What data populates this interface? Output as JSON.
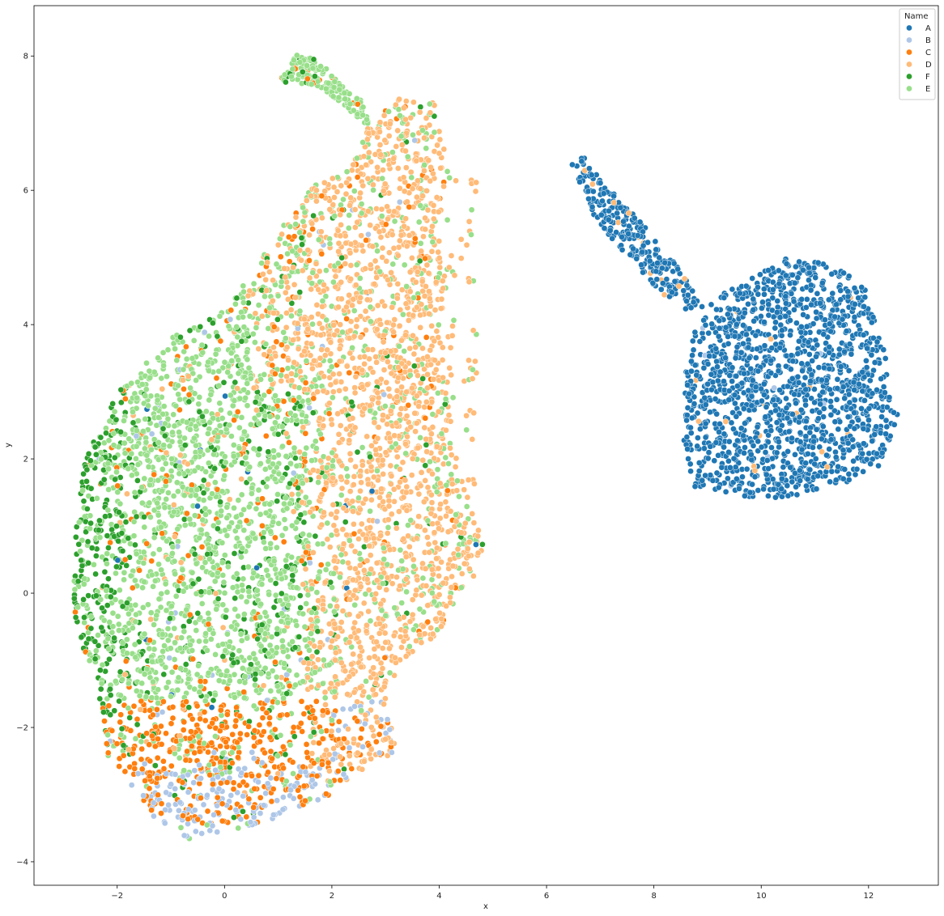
{
  "chart_data": {
    "type": "scatter",
    "title": "",
    "xlabel": "x",
    "ylabel": "y",
    "xlim": [
      -3.55,
      13.3
    ],
    "ylim": [
      -4.35,
      8.75
    ],
    "xticks": [
      -2,
      0,
      2,
      4,
      6,
      8,
      10,
      12
    ],
    "yticks": [
      -4,
      -2,
      0,
      2,
      4,
      6,
      8
    ],
    "grid": false,
    "legend": {
      "title": "Name",
      "placement": "top-right",
      "entries": [
        "A",
        "B",
        "C",
        "D",
        "F",
        "E"
      ]
    },
    "series": [
      {
        "name": "A",
        "color": "#1f77b4",
        "note_clusters": "right blob x 8.5–12.5, y 1.4–5.1; arm x 6.4–8.5, y 4.2–6.6"
      },
      {
        "name": "B",
        "color": "#aec7e8"
      },
      {
        "name": "C",
        "color": "#ff7f0e"
      },
      {
        "name": "D",
        "color": "#ffbb78"
      },
      {
        "name": "F",
        "color": "#2ca02c"
      },
      {
        "name": "E",
        "color": "#98df8a"
      }
    ]
  }
}
